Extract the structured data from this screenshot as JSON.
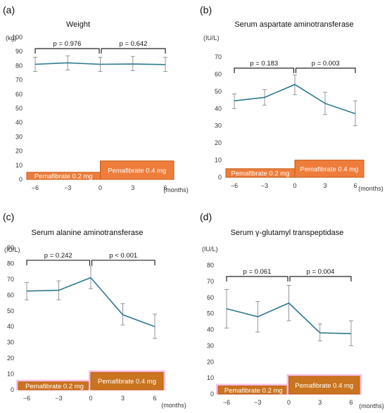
{
  "chart_data": [
    {
      "panel": "(a)",
      "type": "line",
      "title": "Weight",
      "ylabel": "(kg)",
      "xlabel": "(months)",
      "x": [
        -6,
        -3,
        0,
        3,
        6
      ],
      "x_ticks": [
        "−6",
        "−3",
        "0",
        "3",
        "6"
      ],
      "y_ticks": [
        "0",
        "10",
        "20",
        "30",
        "40",
        "50",
        "60",
        "70",
        "80",
        "90",
        "100"
      ],
      "ylim": [
        0,
        100
      ],
      "series": [
        {
          "values": [
            81,
            82,
            81,
            81.2,
            80.8
          ],
          "err_low": [
            76,
            77,
            76,
            76.5,
            76
          ],
          "err_high": [
            86,
            87,
            86,
            86.5,
            86
          ]
        }
      ],
      "p_values": [
        "p = 0.976",
        "p = 0.642"
      ],
      "bracket_y": 92,
      "dosing": [
        {
          "label": "Pemafibrate 0.2 mg",
          "from": -6,
          "to": 0,
          "top": 5
        },
        {
          "label": "Pemafibrate 0.4 mg",
          "from": 0,
          "to": 6,
          "top": 13
        }
      ],
      "highlight": false
    },
    {
      "panel": "(b)",
      "type": "line",
      "title": "Serum aspartate aminotransferase",
      "ylabel": "(IU/L)",
      "xlabel": "(months)",
      "x": [
        -6,
        -3,
        0,
        3,
        6
      ],
      "x_ticks": [
        "−6",
        "−3",
        "0",
        "3",
        "6"
      ],
      "y_ticks": [
        "0",
        "10",
        "20",
        "30",
        "40",
        "50",
        "60",
        "70"
      ],
      "ylim": [
        0,
        70
      ],
      "series": [
        {
          "values": [
            44.5,
            46.5,
            54,
            43,
            37
          ],
          "err_low": [
            40,
            42,
            48,
            36.5,
            30
          ],
          "err_high": [
            48.5,
            51,
            59.5,
            49.5,
            44.5
          ]
        }
      ],
      "p_values": [
        "p = 0.183",
        "p = 0.003"
      ],
      "bracket_y": 63.5,
      "dosing": [
        {
          "label": "Pemafibrate 0.2 mg",
          "from": -6,
          "to": 0,
          "top": 5
        },
        {
          "label": "Pemafibrate 0.4 mg",
          "from": 0,
          "to": 6,
          "top": 10
        }
      ],
      "highlight": false
    },
    {
      "panel": "(c)",
      "type": "line",
      "title": "Serum alanine aminotransferase",
      "ylabel": "(IU/L)",
      "xlabel": "(months)",
      "x": [
        -6,
        -3,
        0,
        3,
        6
      ],
      "x_ticks": [
        "−6",
        "−3",
        "0",
        "3",
        "6"
      ],
      "y_ticks": [
        "0",
        "10",
        "20",
        "30",
        "40",
        "50",
        "60",
        "70",
        "80",
        "90"
      ],
      "ylim": [
        0,
        90
      ],
      "series": [
        {
          "values": [
            62.5,
            63,
            71,
            47.5,
            40
          ],
          "err_low": [
            57,
            57,
            64,
            41,
            32.5
          ],
          "err_high": [
            68,
            69,
            78.5,
            54.5,
            48
          ]
        }
      ],
      "p_values": [
        "p = 0.242",
        "p < 0.001"
      ],
      "bracket_y": 82,
      "dosing": [
        {
          "label": "Pemafibrate 0.2 mg",
          "from": -6,
          "to": 0,
          "top": 5
        },
        {
          "label": "Pemafibrate 0.4 mg",
          "from": 0,
          "to": 6,
          "top": 11
        }
      ],
      "highlight": true
    },
    {
      "panel": "(d)",
      "type": "line",
      "title": "Serum γ-glutamyl transpeptidase",
      "ylabel": "(IU/L)",
      "xlabel": "(months)",
      "x": [
        -6,
        -3,
        0,
        3,
        6
      ],
      "x_ticks": [
        "−6",
        "−3",
        "0",
        "3",
        "6"
      ],
      "y_ticks": [
        "0",
        "10",
        "20",
        "30",
        "40",
        "50",
        "60",
        "70",
        "80"
      ],
      "ylim": [
        0,
        80
      ],
      "series": [
        {
          "values": [
            53,
            48,
            56.5,
            38,
            37.5
          ],
          "err_low": [
            41,
            38.5,
            45.5,
            33,
            30
          ],
          "err_high": [
            65,
            57.5,
            67.5,
            43.5,
            45.5
          ]
        }
      ],
      "p_values": [
        "p = 0.061",
        "p = 0.004"
      ],
      "bracket_y": 73,
      "dosing": [
        {
          "label": "Pemafibrate 0.2 mg",
          "from": -6,
          "to": 0,
          "top": 5
        },
        {
          "label": "Pemafibrate 0.4 mg",
          "from": 0,
          "to": 6,
          "top": 11
        }
      ],
      "highlight": true
    }
  ],
  "colors": {
    "line": "#2e7891",
    "error": "#8a8a8a",
    "axis": "#bfbfbf",
    "bracket": "#222222",
    "bar_fill": "#ee7d3b",
    "bar_fill_dark": "#c9741f",
    "bar_stroke": "#c55a11",
    "bar_highlight": "#f6c2e4",
    "bar_text": "#ffffff"
  }
}
